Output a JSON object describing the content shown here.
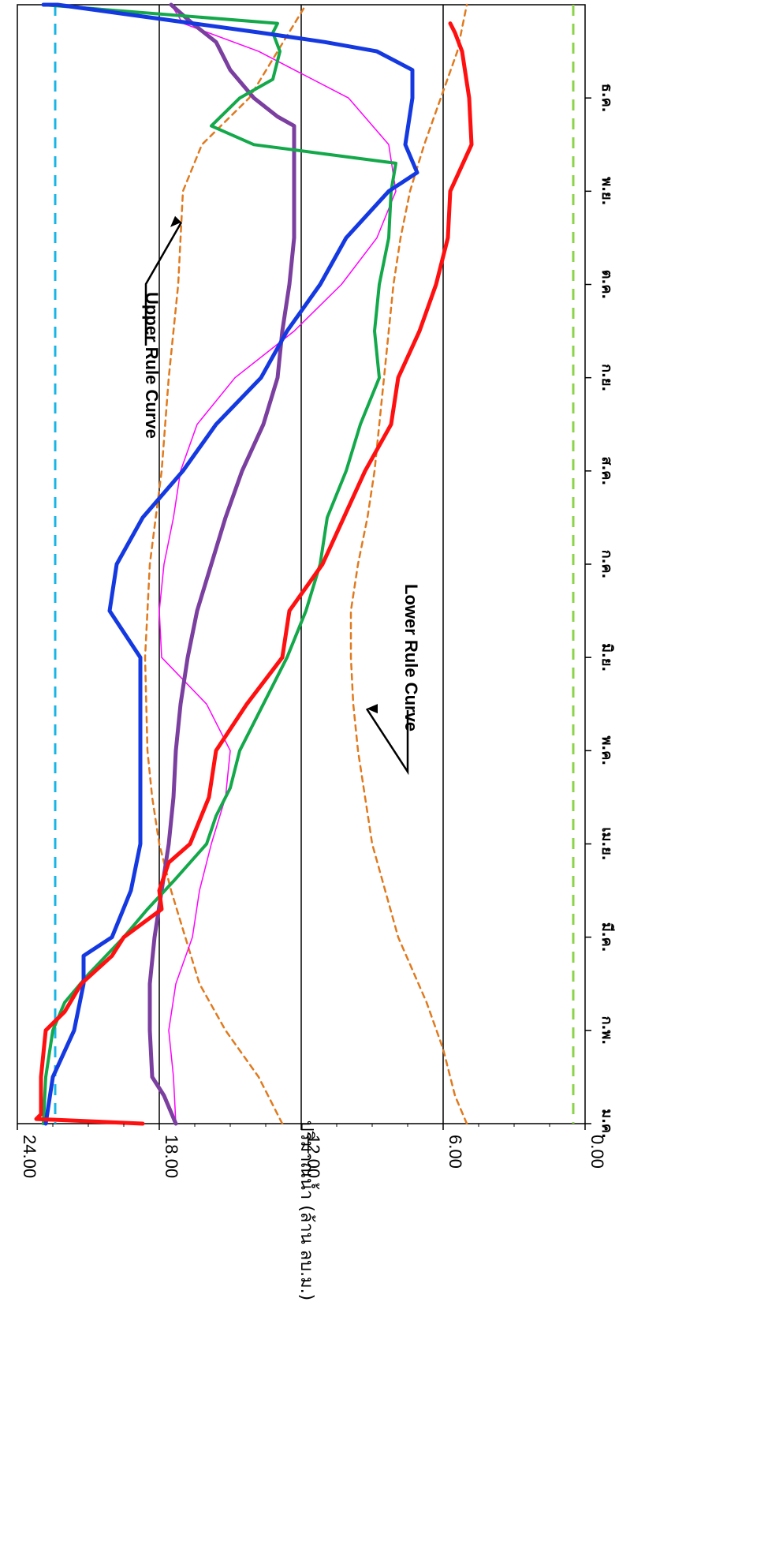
{
  "chart_data": {
    "type": "line",
    "orientation": "rotated-90-clockwise",
    "title": "",
    "ylabel": "ปริมาณน้ำ (ล้าน ลบ.ม.)",
    "xlabel": "",
    "ylim": [
      0,
      24
    ],
    "y_ticks": [
      "0.00",
      "6.00",
      "12.00",
      "18.00",
      "24.00"
    ],
    "grid": "horizontal at 6, 12, 18",
    "x_categories": [
      "ม.ค.",
      "ก.พ.",
      "มี.ค.",
      "เม.ย.",
      "พ.ค.",
      "มิ.ย.",
      "ก.ค.",
      "ส.ค.",
      "ก.ย.",
      "ต.ค.",
      "พ.ย.",
      "ธ.ค."
    ],
    "x_range": [
      0,
      12
    ],
    "reference_lines": [
      {
        "value": 22.4,
        "color": "#19b4e6",
        "style": "dashed"
      },
      {
        "value": 0.5,
        "color": "#8cd24b",
        "style": "dashed"
      }
    ],
    "annotations": [
      {
        "text": "Upper Rule Curve",
        "points_to": {
          "x": 9.7,
          "y": 17.0
        }
      },
      {
        "text": "Lower Rule Curve",
        "points_to": {
          "x": 4.45,
          "y": 9.3
        }
      }
    ],
    "series": [
      {
        "color": "#e07a1f",
        "style": "dashed",
        "width": 2.5,
        "points": [
          [
            0,
            12.8
          ],
          [
            0.5,
            13.8
          ],
          [
            1,
            15.2
          ],
          [
            1.5,
            16.3
          ],
          [
            2,
            16.9
          ],
          [
            2.5,
            17.5
          ],
          [
            3,
            18.0
          ],
          [
            3.5,
            18.3
          ],
          [
            4,
            18.5
          ],
          [
            5,
            18.6
          ],
          [
            6,
            18.4
          ],
          [
            7,
            17.9
          ],
          [
            8,
            17.6
          ],
          [
            9,
            17.2
          ],
          [
            10,
            17.0
          ],
          [
            10.5,
            16.2
          ],
          [
            11,
            14.2
          ],
          [
            11.5,
            13.0
          ],
          [
            12,
            11.8
          ]
        ]
      },
      {
        "color": "#e07a1f",
        "style": "dashed",
        "width": 2.5,
        "points": [
          [
            0,
            5.0
          ],
          [
            0.3,
            5.5
          ],
          [
            0.8,
            6.0
          ],
          [
            1.3,
            6.7
          ],
          [
            2,
            7.9
          ],
          [
            3,
            9.0
          ],
          [
            3.5,
            9.3
          ],
          [
            4,
            9.6
          ],
          [
            4.5,
            9.8
          ],
          [
            5,
            9.9
          ],
          [
            5.5,
            9.9
          ],
          [
            6,
            9.6
          ],
          [
            6.5,
            9.2
          ],
          [
            7,
            8.9
          ],
          [
            7.5,
            8.7
          ],
          [
            8,
            8.5
          ],
          [
            9,
            8.1
          ],
          [
            9.5,
            7.8
          ],
          [
            10,
            7.4
          ],
          [
            10.5,
            6.8
          ],
          [
            11,
            6.1
          ],
          [
            11.5,
            5.4
          ],
          [
            12,
            5.0
          ]
        ]
      },
      {
        "color": "#ff00ff",
        "style": "solid",
        "width": 1.5,
        "points": [
          [
            0,
            17.3
          ],
          [
            0.5,
            17.4
          ],
          [
            1,
            17.6
          ],
          [
            1.5,
            17.3
          ],
          [
            2,
            16.6
          ],
          [
            2.5,
            16.3
          ],
          [
            3,
            15.8
          ],
          [
            3.5,
            15.2
          ],
          [
            4,
            15.0
          ],
          [
            4.5,
            16.0
          ],
          [
            5,
            17.9
          ],
          [
            5.5,
            18.0
          ],
          [
            6,
            17.8
          ],
          [
            6.5,
            17.4
          ],
          [
            7,
            17.1
          ],
          [
            7.5,
            16.4
          ],
          [
            8,
            14.8
          ],
          [
            8.5,
            12.3
          ],
          [
            9,
            10.3
          ],
          [
            9.5,
            8.8
          ],
          [
            10,
            8.0
          ],
          [
            10.5,
            8.3
          ],
          [
            11,
            10.0
          ],
          [
            11.5,
            13.8
          ],
          [
            11.8,
            17.0
          ],
          [
            12,
            17.5
          ]
        ]
      },
      {
        "color": "#7b3fa0",
        "style": "solid",
        "width": 5,
        "points": [
          [
            0,
            17.3
          ],
          [
            0.3,
            17.8
          ],
          [
            0.5,
            18.3
          ],
          [
            1,
            18.4
          ],
          [
            1.5,
            18.4
          ],
          [
            2,
            18.2
          ],
          [
            2.5,
            17.9
          ],
          [
            3,
            17.6
          ],
          [
            3.5,
            17.4
          ],
          [
            4,
            17.3
          ],
          [
            4.5,
            17.1
          ],
          [
            5,
            16.8
          ],
          [
            5.5,
            16.4
          ],
          [
            6,
            15.8
          ],
          [
            6.5,
            15.2
          ],
          [
            7,
            14.5
          ],
          [
            7.5,
            13.6
          ],
          [
            8,
            13.0
          ],
          [
            8.5,
            12.8
          ],
          [
            9,
            12.5
          ],
          [
            9.5,
            12.3
          ],
          [
            10,
            12.3
          ],
          [
            10.5,
            12.3
          ],
          [
            10.7,
            12.3
          ],
          [
            10.8,
            13.0
          ],
          [
            11,
            14.0
          ],
          [
            11.3,
            15.0
          ],
          [
            11.6,
            15.6
          ],
          [
            11.8,
            16.6
          ],
          [
            12,
            17.5
          ]
        ]
      },
      {
        "color": "#13a84a",
        "style": "solid",
        "width": 4,
        "points": [
          [
            0,
            22.9
          ],
          [
            0.5,
            22.8
          ],
          [
            1,
            22.5
          ],
          [
            1.3,
            22.0
          ],
          [
            1.6,
            21.0
          ],
          [
            2,
            19.5
          ],
          [
            2.3,
            18.5
          ],
          [
            2.6,
            17.4
          ],
          [
            3,
            16.0
          ],
          [
            3.3,
            15.6
          ],
          [
            3.6,
            15.0
          ],
          [
            4,
            14.6
          ],
          [
            4.5,
            13.6
          ],
          [
            5,
            12.6
          ],
          [
            5.5,
            11.8
          ],
          [
            6,
            11.2
          ],
          [
            6.5,
            10.9
          ],
          [
            7,
            10.1
          ],
          [
            7.5,
            9.5
          ],
          [
            8,
            8.7
          ],
          [
            8.5,
            8.9
          ],
          [
            9,
            8.7
          ],
          [
            9.5,
            8.3
          ],
          [
            10,
            8.2
          ],
          [
            10.3,
            8.0
          ],
          [
            10.4,
            11.0
          ],
          [
            10.5,
            14.0
          ],
          [
            10.7,
            15.8
          ],
          [
            11,
            14.6
          ],
          [
            11.2,
            13.2
          ],
          [
            11.5,
            12.9
          ],
          [
            11.7,
            13.2
          ],
          [
            11.8,
            13.0
          ],
          [
            12,
            22.9
          ]
        ]
      },
      {
        "color": "#1539e0",
        "style": "solid",
        "width": 5,
        "points": [
          [
            0,
            22.8
          ],
          [
            0.5,
            22.5
          ],
          [
            1,
            21.6
          ],
          [
            1.5,
            21.2
          ],
          [
            1.8,
            21.2
          ],
          [
            2,
            20.0
          ],
          [
            2.5,
            19.2
          ],
          [
            3,
            18.8
          ],
          [
            3.5,
            18.8
          ],
          [
            4,
            18.8
          ],
          [
            4.5,
            18.8
          ],
          [
            5,
            18.8
          ],
          [
            5.5,
            20.1
          ],
          [
            6,
            19.8
          ],
          [
            6.5,
            18.7
          ],
          [
            7,
            17.0
          ],
          [
            7.5,
            15.6
          ],
          [
            8,
            13.7
          ],
          [
            8.5,
            12.6
          ],
          [
            9,
            11.2
          ],
          [
            9.5,
            10.1
          ],
          [
            10,
            8.3
          ],
          [
            10.2,
            7.1
          ],
          [
            10.5,
            7.6
          ],
          [
            11,
            7.3
          ],
          [
            11.3,
            7.3
          ],
          [
            11.5,
            8.8
          ],
          [
            11.6,
            11.0
          ],
          [
            11.7,
            13.7
          ],
          [
            12,
            22.3
          ],
          [
            12,
            22.9
          ]
        ]
      },
      {
        "color": "#ff1010",
        "style": "solid",
        "width": 5,
        "points": [
          [
            0,
            18.7
          ],
          [
            0.05,
            23.2
          ],
          [
            0.1,
            23.0
          ],
          [
            0.5,
            23.0
          ],
          [
            1,
            22.8
          ],
          [
            1.2,
            22.0
          ],
          [
            1.5,
            21.3
          ],
          [
            1.8,
            20.0
          ],
          [
            2,
            19.5
          ],
          [
            2.3,
            17.9
          ],
          [
            2.5,
            18.0
          ],
          [
            2.8,
            17.6
          ],
          [
            3,
            16.7
          ],
          [
            3.5,
            15.9
          ],
          [
            4,
            15.6
          ],
          [
            4.5,
            14.3
          ],
          [
            5,
            12.8
          ],
          [
            5.5,
            12.5
          ],
          [
            6,
            11.1
          ],
          [
            6.5,
            10.2
          ],
          [
            7,
            9.3
          ],
          [
            7.5,
            8.2
          ],
          [
            8,
            7.9
          ],
          [
            8.5,
            7.0
          ],
          [
            9,
            6.3
          ],
          [
            9.5,
            5.8
          ],
          [
            10,
            5.7
          ],
          [
            10.5,
            4.8
          ],
          [
            11,
            4.9
          ],
          [
            11.5,
            5.2
          ],
          [
            11.7,
            5.5
          ],
          [
            11.8,
            5.7
          ]
        ]
      }
    ]
  }
}
